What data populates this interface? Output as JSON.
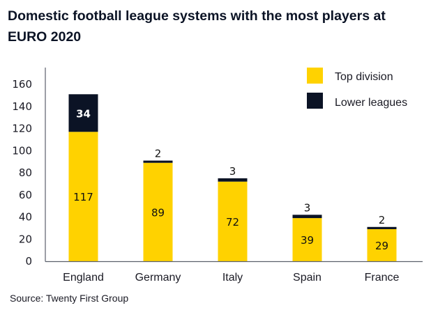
{
  "title": "Domestic football league systems with the most players at EURO 2020",
  "source": "Source: Twenty First Group",
  "chart_data": {
    "type": "bar",
    "stacked": true,
    "title": "Domestic football league systems with the most players at EURO 2020",
    "xlabel": "",
    "ylabel": "",
    "categories": [
      "England",
      "Germany",
      "Italy",
      "Spain",
      "France"
    ],
    "series": [
      {
        "name": "Top division",
        "color": "#FFD200",
        "values": [
          117,
          89,
          72,
          39,
          29
        ]
      },
      {
        "name": "Lower leagues",
        "color": "#0B1325",
        "values": [
          34,
          2,
          3,
          3,
          2
        ]
      }
    ],
    "ylim": [
      0,
      160
    ],
    "yticks": [
      0,
      20,
      40,
      60,
      80,
      100,
      120,
      140,
      160
    ],
    "grid": false,
    "legend": {
      "position": "top-right",
      "entries": [
        "Top division",
        "Lower leagues"
      ]
    },
    "source": "Source: Twenty First Group"
  }
}
